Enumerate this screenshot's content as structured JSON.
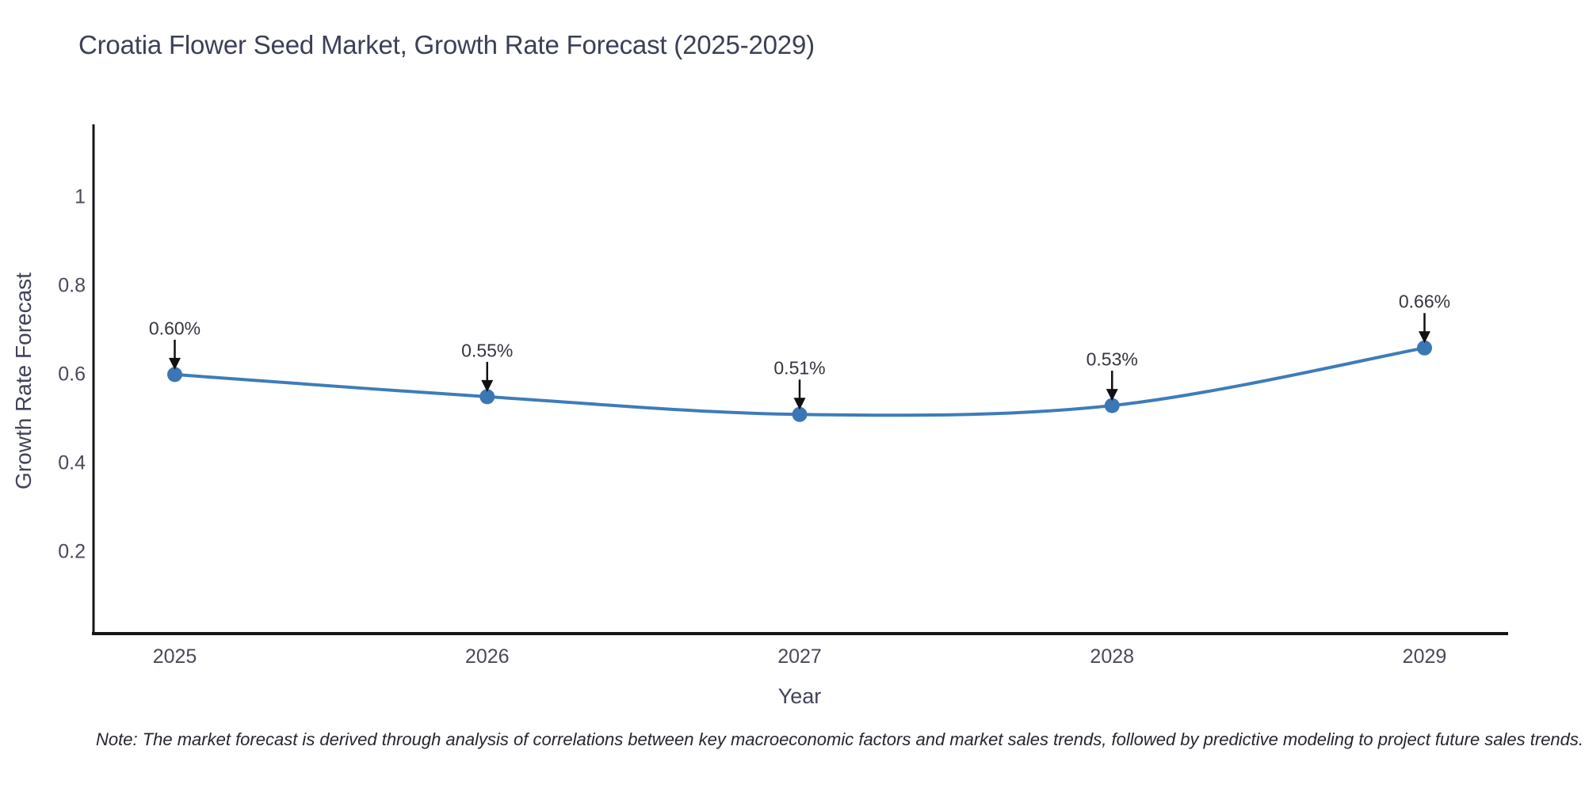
{
  "chart": {
    "title": "Croatia Flower Seed Market, Growth Rate Forecast (2025-2029)",
    "xlabel": "Year",
    "ylabel": "Growth Rate Forecast",
    "note": "Note: The market forecast is derived through analysis of correlations between key macroeconomic factors and market sales trends, followed by predictive modeling to project future sales trends."
  },
  "chart_data": {
    "type": "line",
    "line_shape": "spline",
    "title": "Croatia Flower Seed Market, Growth Rate Forecast (2025-2029)",
    "xlabel": "Year",
    "ylabel": "Growth Rate Forecast",
    "x": [
      2025,
      2026,
      2027,
      2028,
      2029
    ],
    "series": [
      {
        "name": "Growth Rate Forecast",
        "values": [
          0.6,
          0.55,
          0.51,
          0.53,
          0.66
        ]
      }
    ],
    "point_labels": [
      "0.60%",
      "0.55%",
      "0.51%",
      "0.53%",
      "0.66%"
    ],
    "xtick_labels": [
      "2025",
      "2026",
      "2027",
      "2028",
      "2029"
    ],
    "ytick_values": [
      0.2,
      0.4,
      0.6,
      0.8,
      1
    ],
    "ytick_labels": [
      "0.2",
      "0.4",
      "0.6",
      "0.8",
      "1"
    ],
    "xlim": [
      2024.74,
      2029.26
    ],
    "ylim": [
      0.016,
      1.164
    ],
    "grid": false,
    "legend": "none",
    "colors": {
      "line": "#3e7cb9",
      "marker": "#3a77b4",
      "axis": "#161616",
      "arrow": "#111111"
    }
  }
}
